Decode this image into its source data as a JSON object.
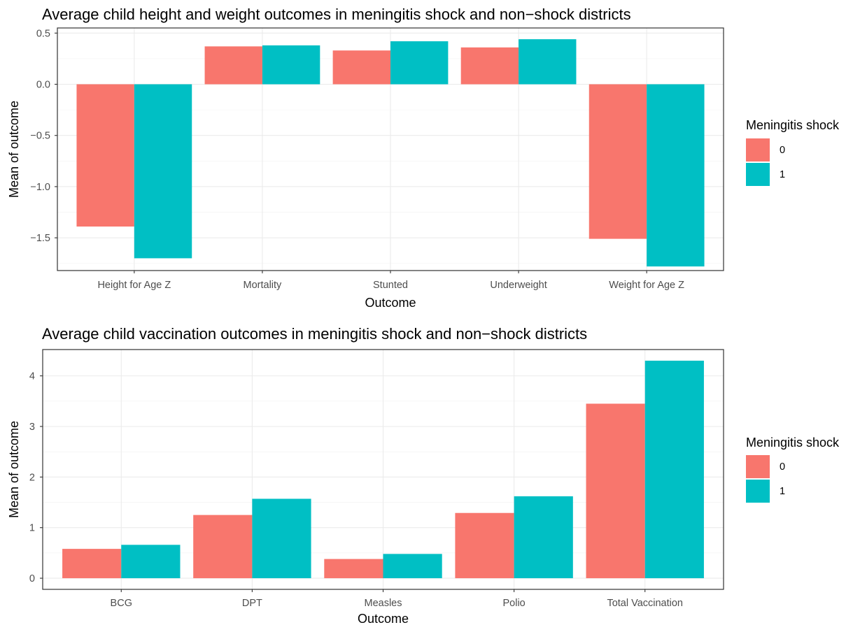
{
  "chart_data": [
    {
      "type": "bar",
      "title": "Average child height and weight outcomes in meningitis shock and non−shock districts",
      "xlabel": "Outcome",
      "ylabel": "Mean of outcome",
      "categories": [
        "Height for Age Z",
        "Mortality",
        "Stunted",
        "Underweight",
        "Weight for Age Z"
      ],
      "series": [
        {
          "name": "0",
          "color": "#F8766D",
          "values": [
            -1.39,
            0.37,
            0.33,
            0.36,
            -1.51
          ]
        },
        {
          "name": "1",
          "color": "#00BFC4",
          "values": [
            -1.7,
            0.38,
            0.42,
            0.44,
            -1.78
          ]
        }
      ],
      "ylim": [
        -1.82,
        0.55
      ],
      "yticks": [
        -1.5,
        -1.0,
        -0.5,
        0.0,
        0.5
      ],
      "ytick_labels": [
        "−1.5",
        "−1.0",
        "−0.5",
        "0.0",
        "0.5"
      ],
      "grid": true,
      "legend": {
        "title": "Meningitis shock",
        "position": "right",
        "labels": [
          "0",
          "1"
        ]
      }
    },
    {
      "type": "bar",
      "title": "Average child vaccination outcomes in meningitis shock and non−shock districts",
      "xlabel": "Outcome",
      "ylabel": "Mean of outcome",
      "categories": [
        "BCG",
        "DPT",
        "Measles",
        "Polio",
        "Total Vaccination"
      ],
      "series": [
        {
          "name": "0",
          "color": "#F8766D",
          "values": [
            0.58,
            1.25,
            0.38,
            1.29,
            3.45
          ]
        },
        {
          "name": "1",
          "color": "#00BFC4",
          "values": [
            0.66,
            1.57,
            0.48,
            1.62,
            4.3
          ]
        }
      ],
      "ylim": [
        -0.22,
        4.52
      ],
      "yticks": [
        0,
        1,
        2,
        3,
        4
      ],
      "ytick_labels": [
        "0",
        "1",
        "2",
        "3",
        "4"
      ],
      "grid": true,
      "legend": {
        "title": "Meningitis shock",
        "position": "right",
        "labels": [
          "0",
          "1"
        ]
      }
    }
  ]
}
